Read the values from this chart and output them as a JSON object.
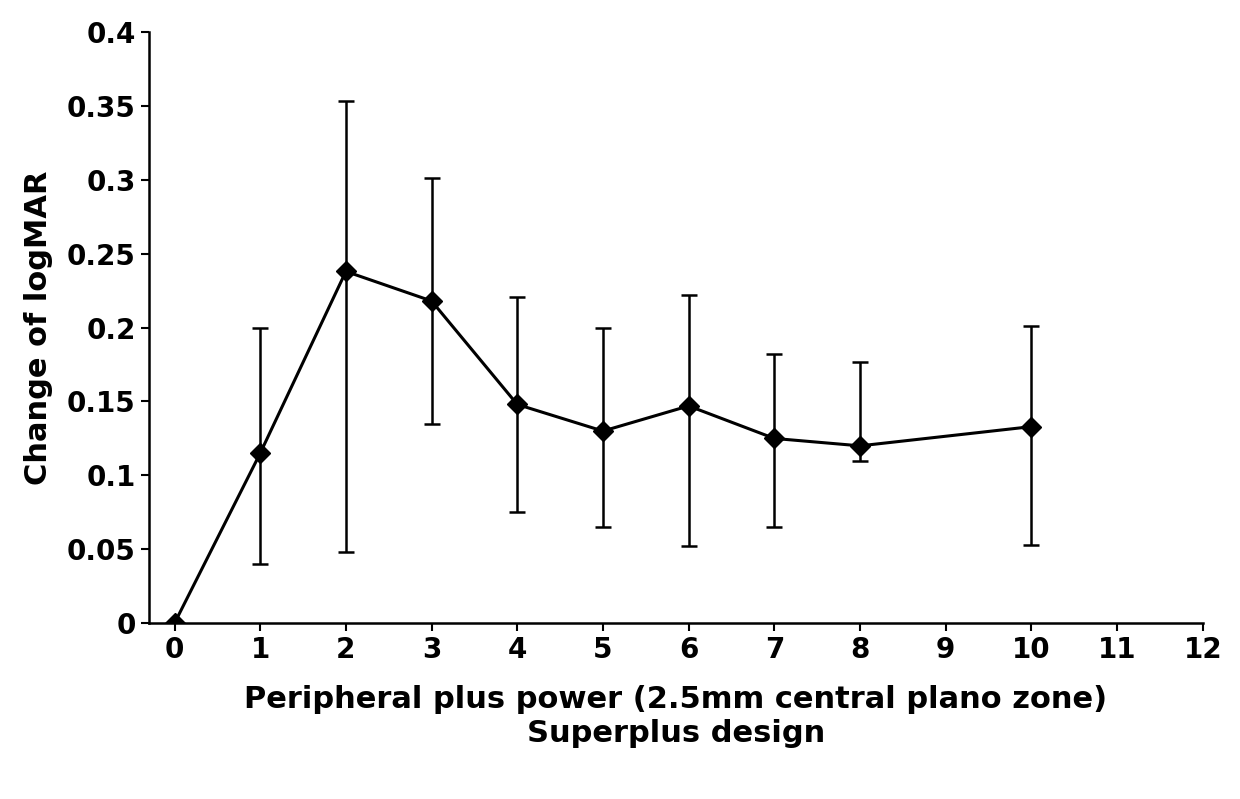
{
  "x": [
    0,
    1,
    2,
    3,
    4,
    5,
    6,
    7,
    8,
    10
  ],
  "y": [
    0.0,
    0.115,
    0.238,
    0.218,
    0.148,
    0.13,
    0.147,
    0.125,
    0.12,
    0.133
  ],
  "yerr_upper": [
    0.0,
    0.085,
    0.115,
    0.083,
    0.073,
    0.07,
    0.075,
    0.057,
    0.057,
    0.068
  ],
  "yerr_lower": [
    0.0,
    0.075,
    0.19,
    0.083,
    0.073,
    0.065,
    0.095,
    0.06,
    0.01,
    0.08
  ],
  "xlabel_line1": "Peripheral plus power (2.5mm central plano zone)",
  "xlabel_line2": "Superplus design",
  "ylabel": "Change of logMAR",
  "ylim": [
    0,
    0.4
  ],
  "xlim": [
    -0.3,
    12
  ],
  "xticks": [
    0,
    1,
    2,
    3,
    4,
    5,
    6,
    7,
    8,
    9,
    10,
    11,
    12
  ],
  "xticklabels": [
    "0",
    "1",
    "2",
    "3",
    "4",
    "5",
    "6",
    "7",
    "8",
    "9",
    "10",
    "11",
    "12"
  ],
  "yticks": [
    0,
    0.05,
    0.1,
    0.15,
    0.2,
    0.25,
    0.3,
    0.35,
    0.4
  ],
  "yticklabels": [
    "0",
    "0.05",
    "0.1",
    "0.15",
    "0.2",
    "0.25",
    "0.3",
    "0.35",
    "0.4"
  ],
  "line_color": "#000000",
  "marker_color": "#000000",
  "background_color": "#ffffff",
  "xlabel_fontsize": 22,
  "ylabel_fontsize": 22,
  "tick_fontsize": 20,
  "font_weight": "bold"
}
